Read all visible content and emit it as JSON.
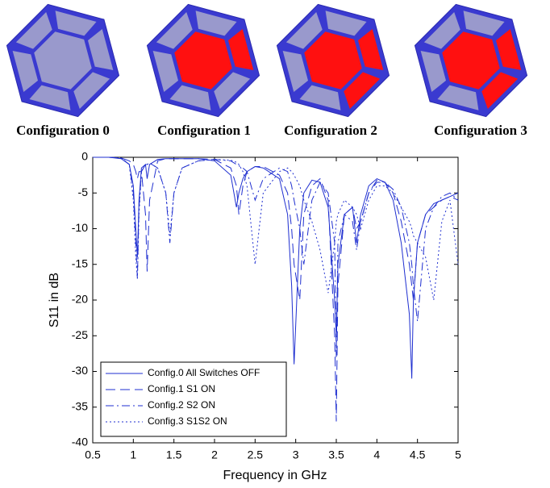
{
  "configurations": [
    "Configuration 0",
    "Configuration 1",
    "Configuration 2",
    "Configuration 3"
  ],
  "chart_data": {
    "type": "line",
    "x_label": "Frequency in GHz",
    "y_label": "S11 in dB",
    "x": [
      0.5,
      0.7,
      0.85,
      0.95,
      1.0,
      1.03,
      1.05,
      1.07,
      1.1,
      1.15,
      1.17,
      1.2,
      1.3,
      1.4,
      1.45,
      1.5,
      1.6,
      1.8,
      2.0,
      2.2,
      2.27,
      2.3,
      2.35,
      2.4,
      2.5,
      2.6,
      2.8,
      2.9,
      2.95,
      2.98,
      3.05,
      3.1,
      3.2,
      3.3,
      3.4,
      3.48,
      3.5,
      3.52,
      3.6,
      3.7,
      3.75,
      3.8,
      3.9,
      4.0,
      4.1,
      4.2,
      4.3,
      4.4,
      4.43,
      4.45,
      4.5,
      4.6,
      4.7,
      4.8,
      4.9,
      5.0
    ],
    "series": [
      {
        "name": "Config.0 All Switches OFF",
        "color": "#1f2fd0",
        "dash": "none",
        "values": [
          0,
          0,
          -0.2,
          -1,
          -4,
          -10,
          -14,
          -6,
          -1.5,
          -1,
          -3,
          -1,
          -0.3,
          -0.2,
          -0.2,
          -0.2,
          -0.2,
          -0.2,
          -0.5,
          -2.5,
          -7,
          -5,
          -3,
          -2,
          -1.3,
          -1.5,
          -3,
          -8,
          -18,
          -29,
          -10,
          -5,
          -3.2,
          -3.5,
          -7,
          -20,
          -25,
          -15,
          -8,
          -7,
          -12,
          -8,
          -4,
          -3,
          -3.5,
          -6,
          -12,
          -22,
          -31,
          -20,
          -12,
          -8,
          -6.5,
          -6,
          -5.5,
          -5
        ]
      },
      {
        "name": "Config.1 S1 ON",
        "color": "#1f2fd0",
        "dash": "12 6",
        "values": [
          0,
          0,
          -0.1,
          -0.5,
          -1,
          -2,
          -3,
          -2,
          -2,
          -8,
          -16,
          -6,
          -0.5,
          -0.2,
          -0.2,
          -0.2,
          -0.2,
          -0.2,
          -0.3,
          -1.5,
          -4,
          -8,
          -4,
          -2,
          -1.3,
          -1.3,
          -2.5,
          -5,
          -10,
          -15,
          -20,
          -8,
          -4,
          -3,
          -6,
          -25,
          -37,
          -18,
          -8,
          -7,
          -10,
          -9,
          -5,
          -3.2,
          -3.5,
          -5,
          -9,
          -15,
          -18,
          -20,
          -12,
          -8,
          -7,
          -6,
          -5.5,
          -6
        ]
      },
      {
        "name": "Config.2 S2 ON",
        "color": "#1f2fd0",
        "dash": "10 4 2 4",
        "values": [
          0,
          0,
          -0.1,
          -1,
          -5,
          -12,
          -17,
          -7,
          -2,
          -1,
          -1,
          -0.8,
          -1.5,
          -5,
          -12,
          -5,
          -1.5,
          -0.5,
          -0.3,
          -0.5,
          -1,
          -1.2,
          -1.5,
          -2,
          -6,
          -3,
          -1.5,
          -2,
          -4,
          -6,
          -10,
          -15,
          -6,
          -3.5,
          -5,
          -12,
          -28,
          -12,
          -8,
          -9,
          -13,
          -9,
          -5,
          -3.5,
          -3.5,
          -4.5,
          -7,
          -12,
          -15,
          -18,
          -23,
          -10,
          -7,
          -5.5,
          -5,
          -6
        ]
      },
      {
        "name": "Config.3 S1S2 ON",
        "color": "#1f2fd0",
        "dash": "2 3",
        "values": [
          0,
          0,
          -0.1,
          -1,
          -6,
          -14,
          -17,
          -8,
          -2,
          -1,
          -1,
          -0.8,
          -1.5,
          -5,
          -11,
          -5,
          -1.5,
          -0.5,
          -0.3,
          -0.4,
          -0.7,
          -1,
          -2,
          -4,
          -15,
          -5,
          -2,
          -1.5,
          -2,
          -2.5,
          -4,
          -6,
          -9,
          -13,
          -19,
          -12,
          -9,
          -8,
          -6,
          -7,
          -8,
          -10,
          -6,
          -4,
          -4,
          -5,
          -7,
          -9,
          -10,
          -11,
          -12,
          -14,
          -20,
          -9,
          -6,
          -15
        ]
      }
    ],
    "xlim": [
      0.5,
      5
    ],
    "ylim": [
      -40,
      0
    ],
    "xticks": [
      0.5,
      1,
      1.5,
      2,
      2.5,
      3,
      3.5,
      4,
      4.5,
      5
    ],
    "yticks": [
      0,
      -5,
      -10,
      -15,
      -20,
      -25,
      -30,
      -35,
      -40
    ],
    "legend": "lower left"
  }
}
